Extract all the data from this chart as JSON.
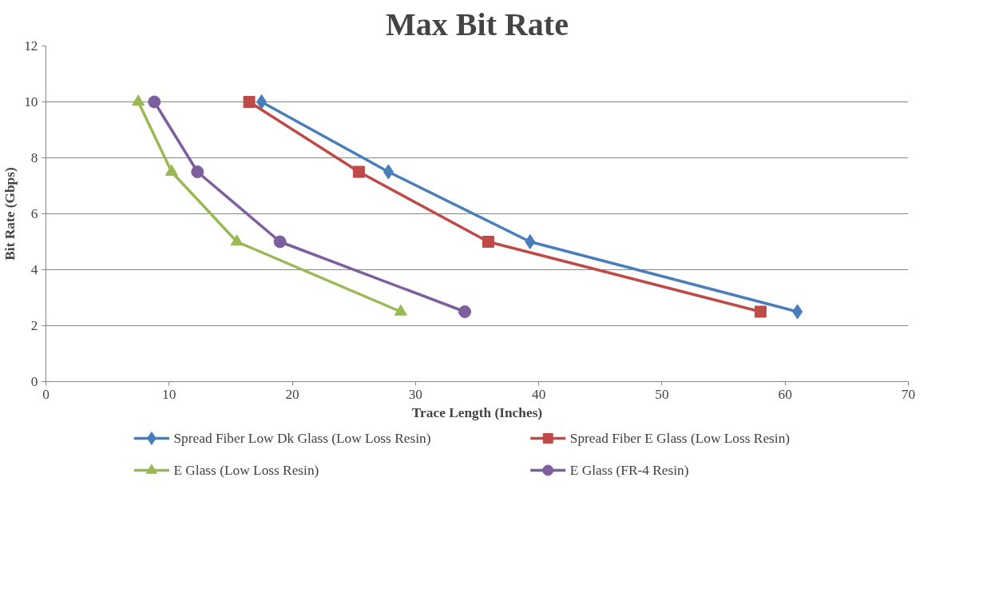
{
  "chart_data": {
    "type": "line",
    "title": "Max Bit Rate",
    "xlabel": "Trace Length (Inches)",
    "ylabel": "Bit Rate (Gbps)",
    "xlim": [
      0,
      70
    ],
    "xticks": [
      0,
      10,
      20,
      30,
      40,
      50,
      60,
      70
    ],
    "ylim": [
      0,
      12
    ],
    "yticks": [
      0,
      2,
      4,
      6,
      8,
      10,
      12
    ],
    "grid": "y",
    "legend": "bottom",
    "series": [
      {
        "name": "Spread Fiber Low Dk Glass (Low Loss Resin)",
        "color": "#4a7ebb",
        "marker": "diamond",
        "x": [
          17.5,
          27.8,
          39.3,
          61
        ],
        "values": [
          10,
          7.5,
          5,
          2.5
        ]
      },
      {
        "name": "Spread Fiber E Glass (Low Loss Resin)",
        "color": "#be4b48",
        "marker": "square",
        "x": [
          16.5,
          25.4,
          35.9,
          58
        ],
        "values": [
          10,
          7.5,
          5,
          2.5
        ]
      },
      {
        "name": "E Glass (Low Loss Resin)",
        "color": "#98b954",
        "marker": "triangle",
        "x": [
          7.5,
          10.2,
          15.5,
          28.8
        ],
        "values": [
          10,
          7.5,
          5,
          2.5
        ]
      },
      {
        "name": "E Glass (FR-4 Resin)",
        "color": "#7d5fa0",
        "marker": "circle",
        "x": [
          8.8,
          12.3,
          19,
          34
        ],
        "values": [
          10,
          7.5,
          5,
          2.5
        ]
      }
    ]
  }
}
